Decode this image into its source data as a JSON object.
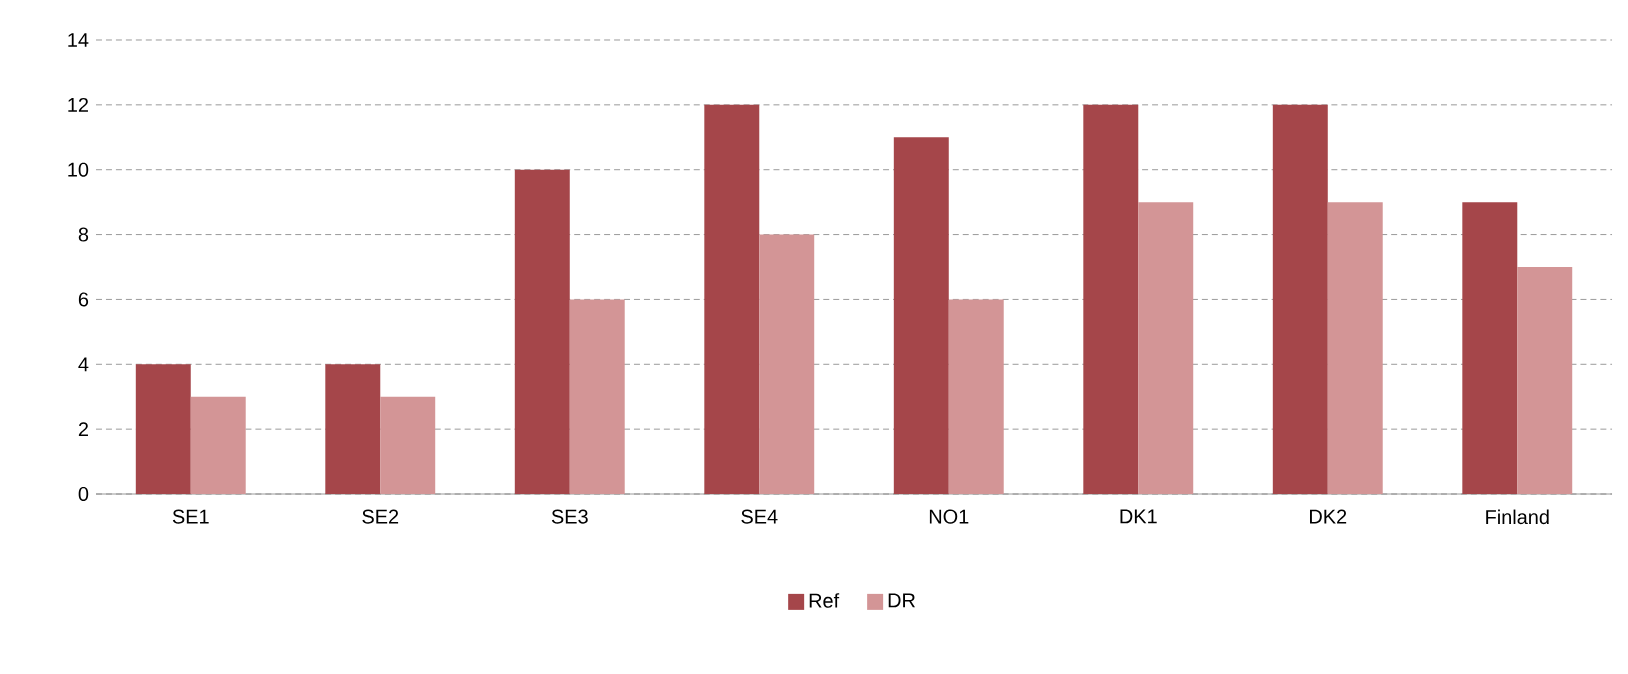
{
  "chart_data": {
    "type": "bar",
    "categories": [
      "SE1",
      "SE2",
      "SE3",
      "SE4",
      "NO1",
      "DK1",
      "DK2",
      "Finland"
    ],
    "series": [
      {
        "name": "Ref",
        "color": "#a5464a",
        "values": [
          4,
          4,
          10,
          12,
          11,
          12,
          12,
          9
        ]
      },
      {
        "name": "DR",
        "color": "#d39596",
        "values": [
          3,
          3,
          6,
          8,
          6,
          9,
          9,
          7
        ]
      }
    ],
    "ylim": [
      0,
      14
    ],
    "yticks": [
      0,
      2,
      4,
      6,
      8,
      10,
      12,
      14
    ],
    "grid": "y",
    "legend": "bottom"
  }
}
